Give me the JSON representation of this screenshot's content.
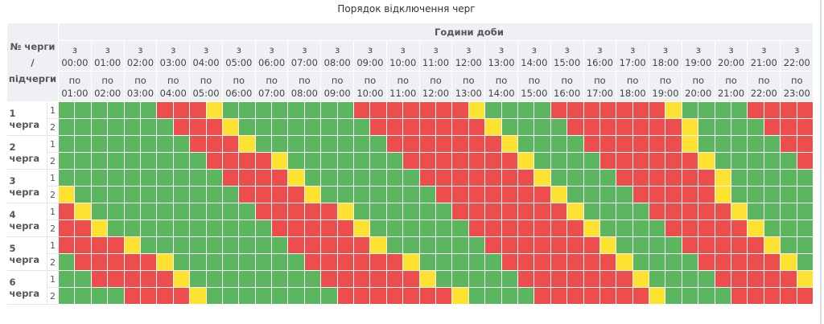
{
  "title": "Порядок відключення черг",
  "header": {
    "corner_label": [
      "№ черги",
      "/",
      "підчерги"
    ],
    "hours_group": "Години доби",
    "from_prefix": "з",
    "to_prefix": "по",
    "hours": [
      {
        "from": "00:00",
        "to": "01:00"
      },
      {
        "from": "01:00",
        "to": "02:00"
      },
      {
        "from": "02:00",
        "to": "03:00"
      },
      {
        "from": "03:00",
        "to": "04:00"
      },
      {
        "from": "04:00",
        "to": "05:00"
      },
      {
        "from": "05:00",
        "to": "06:00"
      },
      {
        "from": "06:00",
        "to": "07:00"
      },
      {
        "from": "07:00",
        "to": "08:00"
      },
      {
        "from": "08:00",
        "to": "09:00"
      },
      {
        "from": "09:00",
        "to": "10:00"
      },
      {
        "from": "10:00",
        "to": "11:00"
      },
      {
        "from": "11:00",
        "to": "12:00"
      },
      {
        "from": "12:00",
        "to": "13:00"
      },
      {
        "from": "13:00",
        "to": "14:00"
      },
      {
        "from": "14:00",
        "to": "15:00"
      },
      {
        "from": "15:00",
        "to": "16:00"
      },
      {
        "from": "16:00",
        "to": "17:00"
      },
      {
        "from": "17:00",
        "to": "18:00"
      },
      {
        "from": "18:00",
        "to": "19:00"
      },
      {
        "from": "19:00",
        "to": "20:00"
      },
      {
        "from": "20:00",
        "to": "21:00"
      },
      {
        "from": "21:00",
        "to": "22:00"
      },
      {
        "from": "22:00",
        "to": "23:00"
      }
    ]
  },
  "status_colors": {
    "G": "#5cb660",
    "R": "#ee4d4d",
    "Y": "#fde232"
  },
  "status_meaning": {
    "G": "power-on",
    "R": "power-off",
    "Y": "possible-off"
  },
  "queues": [
    {
      "label": "1 черга",
      "subqueues": [
        {
          "label": "1",
          "slots": "GGGGGG RRR Y GGGGGGGG RRRRRRR Y GGGG RRRRRRR Y GGGG RRRR"
        },
        {
          "label": "2",
          "slots": "GGGGGGG RRR Y GGGGGGGG RRRRRRR Y GGGG RRRRRRR Y GGGG RRR"
        }
      ]
    },
    {
      "label": "2 черга",
      "subqueues": [
        {
          "label": "1",
          "slots": "GGGGGGGG RRR Y GGGGGGGG RRRRRRR Y GGGG RRRRRR Y GGGGG RR"
        },
        {
          "label": "2",
          "slots": "GGGGGGGGG RRRR Y GGGGGGG RRRRRRR Y GGGG RRRRRR Y GGGGG R"
        }
      ]
    },
    {
      "label": "3 черга",
      "subqueues": [
        {
          "label": "1",
          "slots": "GGGGGGGGGG RRRR Y GGGGGGG RRRRRRR Y GGGG RRRRRR Y GGGGG"
        },
        {
          "label": "2",
          "slots": "Y GGGGGGGGGG RRRR Y GGGGGGG RRRRRRR Y GGGG RRRRR Y GGGGG"
        }
      ]
    },
    {
      "label": "4 черга",
      "subqueues": [
        {
          "label": "1",
          "slots": "R Y GGGGGGGGGG RRRRR Y GGGGGG RRRRRRR Y GGGG RRRRR Y GGGG"
        },
        {
          "label": "2",
          "slots": "RR Y GGGGGGGGGG RRRRR Y GGGGGG RRRRRRR Y GGGG RRRRR Y GGG"
        }
      ]
    },
    {
      "label": "5 черга",
      "subqueues": [
        {
          "label": "1",
          "slots": "RRRR Y GGGGGGGGG RRRRR Y GGGGGG RRRRRRR Y GGGG RRRRR Y GG"
        },
        {
          "label": "2",
          "slots": "G RRRRR Y GGGGGGGG RRRRRR Y GGGGG RRRRRRR Y GGGG RRRRR Y G"
        }
      ]
    },
    {
      "label": "6 черга",
      "subqueues": [
        {
          "label": "1",
          "slots": "GG RRRRR Y GGGGGGGG RRRRRR Y GGGGG RRRRRRR Y GGGG RRRRR Y"
        },
        {
          "label": "2",
          "slots": "GGGG RRRR Y GGGGGGGG RRRRRRR Y GGGG RRRRRRR Y GGGG RRRRR"
        }
      ]
    }
  ]
}
